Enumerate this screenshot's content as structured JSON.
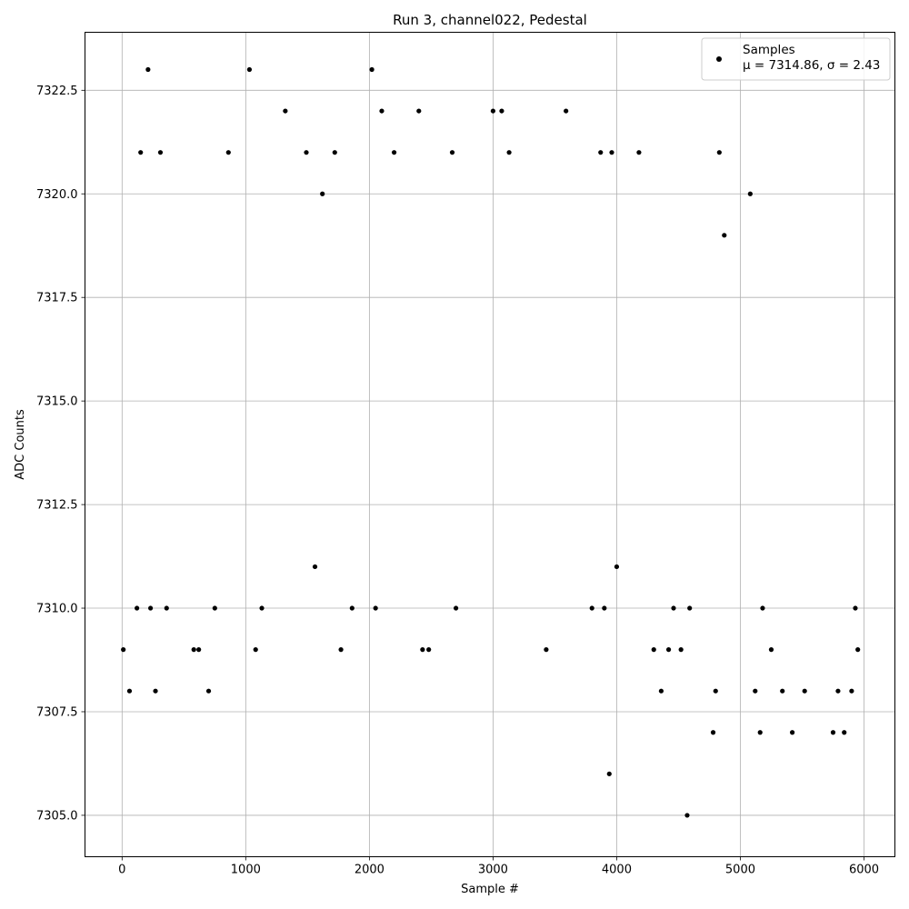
{
  "chart_data": {
    "type": "scatter",
    "title": "Run 3, channel022, Pedestal",
    "xlabel": "Sample #",
    "ylabel": "ADC Counts",
    "xlim": [
      -300,
      6250
    ],
    "ylim": [
      7304.0,
      7323.9
    ],
    "xticks": [
      0,
      1000,
      2000,
      3000,
      4000,
      5000,
      6000
    ],
    "xtick_labels": [
      "0",
      "1000",
      "2000",
      "3000",
      "4000",
      "5000",
      "6000"
    ],
    "yticks": [
      7305.0,
      7307.5,
      7310.0,
      7312.5,
      7315.0,
      7317.5,
      7320.0,
      7322.5
    ],
    "ytick_labels": [
      "7305.0",
      "7307.5",
      "7310.0",
      "7312.5",
      "7315.0",
      "7317.5",
      "7320.0",
      "7322.5"
    ],
    "grid": true,
    "legend_position": "top-right",
    "marker_color": "#000000",
    "series": [
      {
        "name": "Samples",
        "legend_line1": "Samples",
        "legend_line2": "μ = 7314.86, σ = 2.43",
        "x": [
          10,
          60,
          120,
          150,
          210,
          230,
          270,
          310,
          360,
          580,
          620,
          700,
          750,
          860,
          1030,
          1080,
          1130,
          1320,
          1490,
          1560,
          1620,
          1720,
          1770,
          1860,
          2020,
          2050,
          2100,
          2200,
          2400,
          2430,
          2480,
          2670,
          2700,
          3000,
          3070,
          3130,
          3430,
          3590,
          3800,
          3870,
          3900,
          3940,
          3960,
          4000,
          4180,
          4300,
          4360,
          4420,
          4460,
          4520,
          4570,
          4590,
          4780,
          4800,
          4830,
          4870,
          5080,
          5120,
          5160,
          5180,
          5250,
          5340,
          5420,
          5520,
          5750,
          5790,
          5840,
          5900,
          5930,
          5950
        ],
        "y": [
          7309,
          7308,
          7310,
          7321,
          7323,
          7310,
          7308,
          7321,
          7310,
          7309,
          7309,
          7308,
          7310,
          7321,
          7323,
          7309,
          7310,
          7322,
          7321,
          7311,
          7320,
          7321,
          7309,
          7310,
          7323,
          7310,
          7322,
          7321,
          7322,
          7309,
          7309,
          7321,
          7310,
          7322,
          7322,
          7321,
          7309,
          7322,
          7310,
          7321,
          7310,
          7306,
          7321,
          7311,
          7321,
          7309,
          7308,
          7309,
          7310,
          7309,
          7305,
          7310,
          7307,
          7308,
          7321,
          7319,
          7320,
          7308,
          7307,
          7310,
          7309,
          7308,
          7307,
          7308,
          7307,
          7308,
          7307,
          7308,
          7310,
          7309
        ]
      }
    ]
  }
}
